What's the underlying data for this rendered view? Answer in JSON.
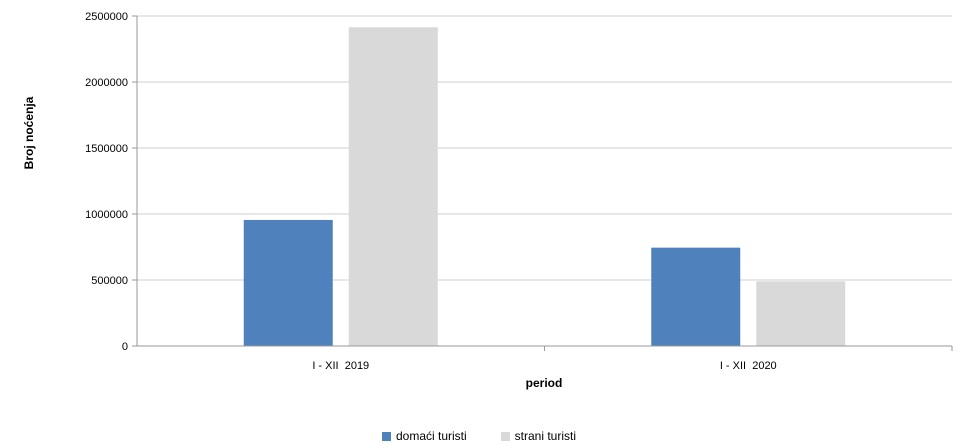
{
  "chart_data": {
    "type": "bar",
    "categories": [
      "I - XII  2019",
      "I - XII  2020"
    ],
    "series": [
      {
        "name": "domaći turisti",
        "values": [
          955000,
          745000
        ],
        "color": "#4f81bd"
      },
      {
        "name": "strani turisti",
        "values": [
          2415000,
          490000
        ],
        "color": "#d9d9d9"
      }
    ],
    "title": "",
    "xlabel": "period",
    "ylabel": "Broj noćenja",
    "ylim": [
      0,
      2500000
    ],
    "yticks": [
      0,
      500000,
      1000000,
      1500000,
      2000000,
      2500000
    ],
    "grid": true,
    "legend_position": "bottom"
  }
}
